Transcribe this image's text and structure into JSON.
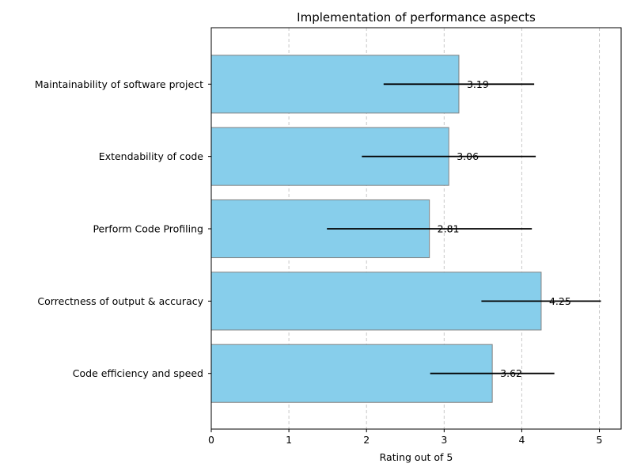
{
  "chart_data": {
    "type": "bar",
    "orientation": "horizontal",
    "title": "Implementation of performance aspects",
    "xlabel": "Rating out of 5",
    "ylabel": "",
    "xlim": [
      0,
      5.28
    ],
    "xticks": [
      "0",
      "1",
      "2",
      "3",
      "4",
      "5"
    ],
    "grid": "x-dashed",
    "categories": [
      "Maintainability of software project",
      "Extendability of code",
      "Perform Code Profiling",
      "Correctness of output & accuracy",
      "Code efficiency and speed"
    ],
    "values": [
      3.19,
      3.06,
      2.81,
      4.25,
      3.62
    ],
    "value_labels": [
      "3.19",
      "3.06",
      "2.81",
      "4.25",
      "3.62"
    ],
    "error": [
      0.97,
      1.12,
      1.32,
      0.77,
      0.8
    ],
    "colors": {
      "bar_fill": "#87ceeb",
      "bar_edge": "#808080",
      "error_bar": "#000000",
      "grid": "#c8c8c8"
    }
  }
}
